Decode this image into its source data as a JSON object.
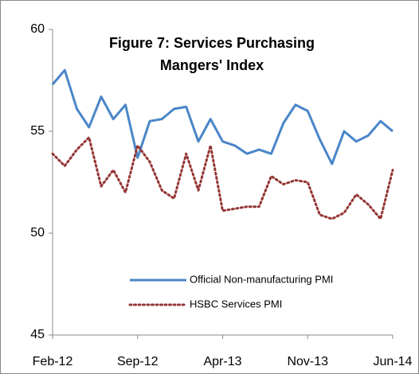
{
  "chart_data": {
    "type": "line",
    "title": [
      "Figure 7: Services Purchasing",
      "Mangers' Index"
    ],
    "categories": [
      "Feb-12",
      null,
      null,
      null,
      null,
      null,
      null,
      "Sep-12",
      null,
      null,
      null,
      null,
      null,
      null,
      "Apr-13",
      null,
      null,
      null,
      null,
      null,
      null,
      "Nov-13",
      null,
      null,
      null,
      null,
      null,
      null,
      "Jun-14"
    ],
    "series": [
      {
        "name": "Official Non-manufacturing PMI",
        "color": "#4a86c8",
        "style": "solid",
        "values": [
          57.3,
          58.0,
          56.1,
          55.2,
          56.7,
          55.6,
          56.3,
          53.7,
          55.5,
          55.6,
          56.1,
          56.2,
          54.5,
          55.6,
          54.5,
          54.3,
          53.9,
          54.1,
          53.9,
          55.4,
          56.3,
          56.0,
          54.6,
          53.4,
          55.0,
          54.5,
          54.8,
          55.5,
          55.0
        ]
      },
      {
        "name": "HSBC Services PMI",
        "color": "#943634",
        "style": "dotted",
        "values": [
          53.9,
          53.3,
          54.1,
          54.7,
          52.3,
          53.1,
          52.0,
          54.3,
          53.5,
          52.1,
          51.7,
          53.9,
          52.1,
          54.3,
          51.1,
          51.2,
          51.3,
          51.3,
          52.8,
          52.4,
          52.6,
          52.5,
          50.9,
          50.7,
          51.0,
          51.9,
          51.4,
          50.7,
          53.1
        ]
      }
    ],
    "ylim": [
      45,
      60
    ],
    "yticks": [
      45,
      50,
      55,
      60
    ],
    "grid": false
  }
}
